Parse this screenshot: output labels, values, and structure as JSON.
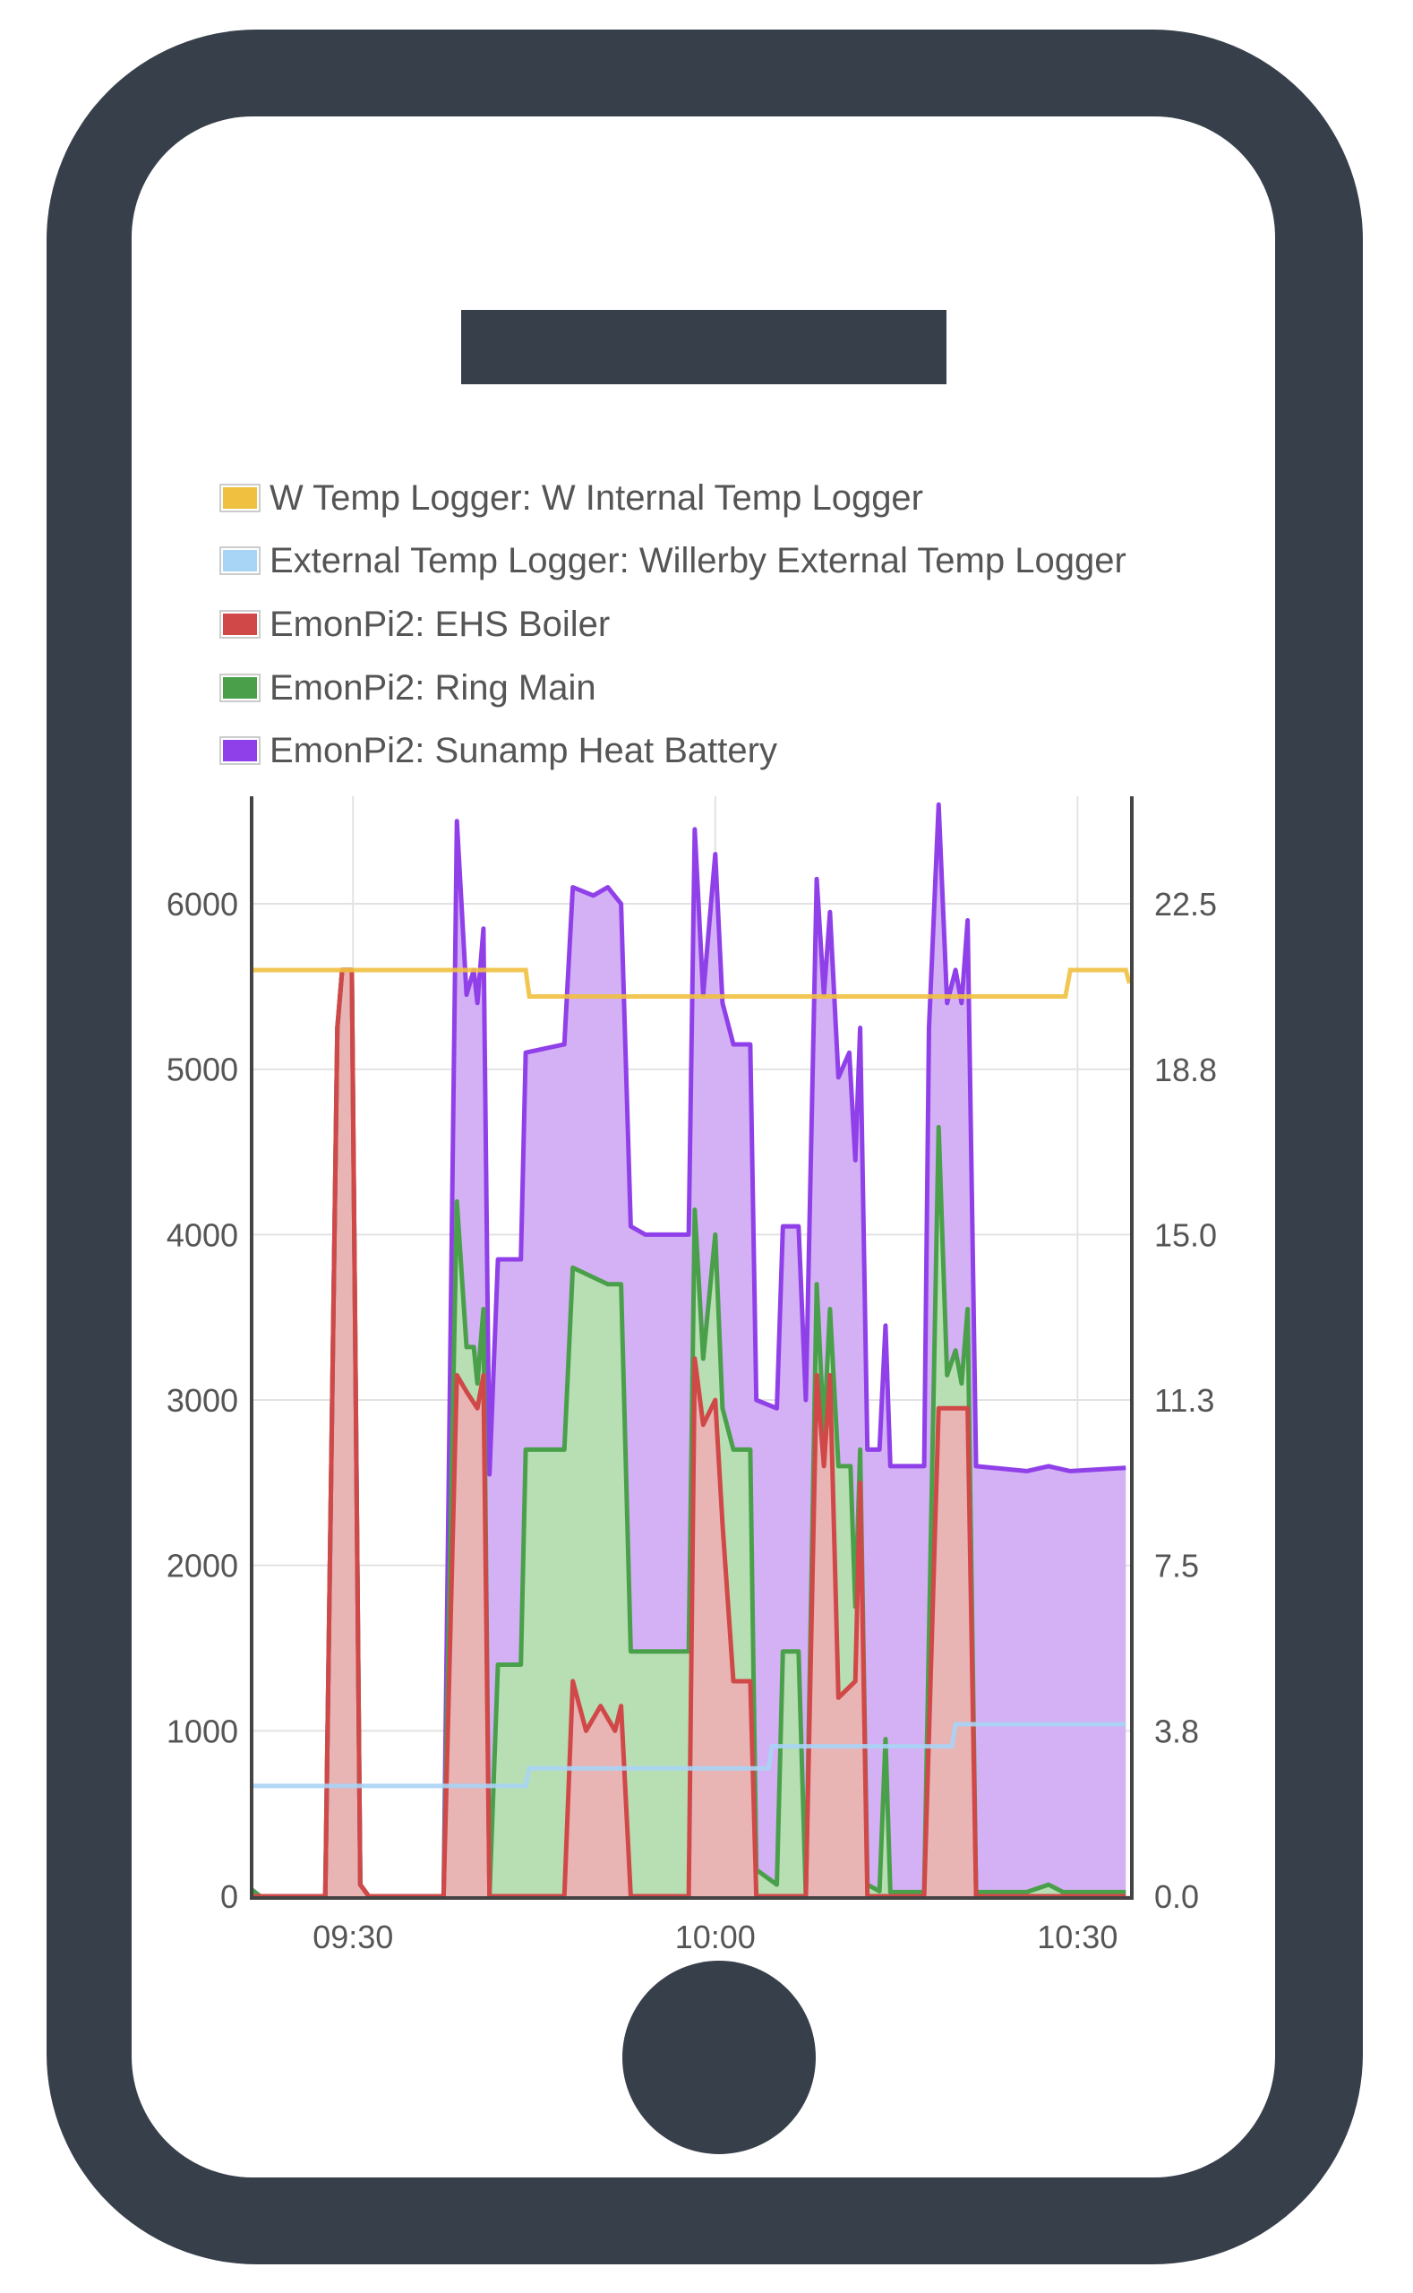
{
  "chart_data": {
    "type": "area",
    "stacked": true,
    "note_values": "power series given as stacked top values (W)",
    "x_unit": "minutes after 09:00",
    "xlim": [
      21.6,
      94.5
    ],
    "x_ticks": [
      {
        "value": 30,
        "label": "09:30"
      },
      {
        "value": 60,
        "label": "10:00"
      },
      {
        "value": 90,
        "label": "10:30"
      }
    ],
    "y_left": {
      "lim": [
        0,
        6650
      ],
      "ticks": [
        0,
        1000,
        2000,
        3000,
        4000,
        5000,
        6000
      ],
      "labels": [
        "0",
        "1000",
        "2000",
        "3000",
        "4000",
        "5000",
        "6000"
      ]
    },
    "y_right": {
      "lim": [
        0,
        24.94
      ],
      "ticks": [
        0,
        3.75,
        7.5,
        11.25,
        15,
        18.75,
        22.5
      ],
      "labels": [
        "0.0",
        "3.8",
        "7.5",
        "11.3",
        "15.0",
        "18.8",
        "22.5"
      ]
    },
    "grid": true,
    "legend_position": "top",
    "series": [
      {
        "name": "W Temp Logger: W Internal Temp Logger",
        "color": "#f0c040",
        "axis": "right",
        "kind": "line",
        "points": [
          [
            21.6,
            21.0
          ],
          [
            44.3,
            21.0
          ],
          [
            44.6,
            20.4
          ],
          [
            89.0,
            20.4
          ],
          [
            89.4,
            21.0
          ],
          [
            94.0,
            21.0
          ],
          [
            94.3,
            20.7
          ]
        ]
      },
      {
        "name": "External Temp Logger: Willerby External Temp Logger",
        "color": "#a8d4f5",
        "axis": "right",
        "kind": "line",
        "points": [
          [
            21.6,
            2.5
          ],
          [
            44.3,
            2.5
          ],
          [
            44.6,
            2.9
          ],
          [
            64.4,
            2.9
          ],
          [
            64.7,
            3.4
          ],
          [
            79.6,
            3.4
          ],
          [
            79.9,
            3.9
          ],
          [
            94.0,
            3.9
          ]
        ]
      },
      {
        "name": "EmonPi2: EHS Boiler",
        "color": "#d04848",
        "fill": "#e8b4b4",
        "axis": "left",
        "kind": "area",
        "points": [
          [
            21.6,
            0
          ],
          [
            27.7,
            0
          ],
          [
            28.7,
            5250
          ],
          [
            29.1,
            5600
          ],
          [
            29.9,
            5600
          ],
          [
            30.6,
            70
          ],
          [
            31.3,
            0
          ],
          [
            37.5,
            0
          ],
          [
            38.6,
            3150
          ],
          [
            39.4,
            3050
          ],
          [
            40.3,
            2950
          ],
          [
            40.8,
            3150
          ],
          [
            41.3,
            0
          ],
          [
            47.5,
            0
          ],
          [
            48.2,
            1300
          ],
          [
            49.3,
            1000
          ],
          [
            50.5,
            1150
          ],
          [
            51.7,
            1000
          ],
          [
            52.2,
            1150
          ],
          [
            53.0,
            0
          ],
          [
            57.8,
            0
          ],
          [
            58.3,
            3250
          ],
          [
            59.0,
            2850
          ],
          [
            60.0,
            3000
          ],
          [
            60.6,
            2250
          ],
          [
            61.5,
            1300
          ],
          [
            62.9,
            1300
          ],
          [
            63.4,
            0
          ],
          [
            67.5,
            0
          ],
          [
            68.4,
            3150
          ],
          [
            69.0,
            2600
          ],
          [
            69.5,
            3150
          ],
          [
            70.2,
            1200
          ],
          [
            71.6,
            1300
          ],
          [
            72.0,
            2500
          ],
          [
            72.6,
            0
          ],
          [
            77.3,
            0
          ],
          [
            78.5,
            2950
          ],
          [
            80.9,
            2950
          ],
          [
            81.6,
            0
          ],
          [
            94.0,
            0
          ]
        ]
      },
      {
        "name": "EmonPi2: Ring Main",
        "color": "#4aa04a",
        "fill": "#b8deb4",
        "axis": "left",
        "kind": "area",
        "points": [
          [
            21.6,
            40
          ],
          [
            22.3,
            0
          ],
          [
            27.7,
            0
          ],
          [
            28.7,
            5250
          ],
          [
            29.1,
            5600
          ],
          [
            29.9,
            5600
          ],
          [
            30.6,
            70
          ],
          [
            31.3,
            0
          ],
          [
            37.5,
            0
          ],
          [
            38.6,
            4200
          ],
          [
            39.4,
            3320
          ],
          [
            40.0,
            3320
          ],
          [
            40.3,
            3100
          ],
          [
            40.8,
            3550
          ],
          [
            41.3,
            0
          ],
          [
            42.0,
            1400
          ],
          [
            43.9,
            1400
          ],
          [
            44.3,
            2700
          ],
          [
            47.5,
            2700
          ],
          [
            48.2,
            3800
          ],
          [
            51.1,
            3700
          ],
          [
            52.2,
            3700
          ],
          [
            53.0,
            1480
          ],
          [
            57.8,
            1480
          ],
          [
            58.3,
            4150
          ],
          [
            59.0,
            3250
          ],
          [
            60.0,
            4000
          ],
          [
            60.6,
            2950
          ],
          [
            61.5,
            2700
          ],
          [
            62.9,
            2700
          ],
          [
            63.4,
            160
          ],
          [
            65.1,
            70
          ],
          [
            65.6,
            1480
          ],
          [
            66.9,
            1480
          ],
          [
            67.5,
            0
          ],
          [
            68.4,
            3700
          ],
          [
            69.0,
            2800
          ],
          [
            69.5,
            3550
          ],
          [
            70.2,
            2600
          ],
          [
            71.2,
            2600
          ],
          [
            71.6,
            1750
          ],
          [
            72.0,
            2700
          ],
          [
            72.6,
            70
          ],
          [
            73.6,
            30
          ],
          [
            74.1,
            950
          ],
          [
            74.5,
            25
          ],
          [
            77.3,
            25
          ],
          [
            78.5,
            4650
          ],
          [
            79.2,
            3150
          ],
          [
            79.9,
            3300
          ],
          [
            80.4,
            3100
          ],
          [
            80.9,
            3550
          ],
          [
            81.6,
            25
          ],
          [
            85.8,
            25
          ],
          [
            87.6,
            70
          ],
          [
            88.8,
            25
          ],
          [
            94.0,
            25
          ]
        ]
      },
      {
        "name": "EmonPi2: Sunamp Heat Battery",
        "color": "#9040e8",
        "fill": "#d4b0f4",
        "axis": "left",
        "kind": "area",
        "points": [
          [
            21.6,
            40
          ],
          [
            22.3,
            0
          ],
          [
            27.7,
            0
          ],
          [
            28.7,
            5250
          ],
          [
            29.1,
            5600
          ],
          [
            29.9,
            5600
          ],
          [
            30.6,
            70
          ],
          [
            31.3,
            0
          ],
          [
            37.5,
            0
          ],
          [
            38.6,
            6500
          ],
          [
            39.4,
            5450
          ],
          [
            40.0,
            5600
          ],
          [
            40.3,
            5400
          ],
          [
            40.8,
            5850
          ],
          [
            41.3,
            2550
          ],
          [
            42.0,
            3850
          ],
          [
            43.9,
            3850
          ],
          [
            44.3,
            5100
          ],
          [
            47.5,
            5150
          ],
          [
            48.2,
            6100
          ],
          [
            49.9,
            6050
          ],
          [
            51.1,
            6100
          ],
          [
            52.2,
            6000
          ],
          [
            53.0,
            4050
          ],
          [
            54.2,
            4000
          ],
          [
            57.8,
            4000
          ],
          [
            58.3,
            6450
          ],
          [
            59.0,
            5450
          ],
          [
            60.0,
            6300
          ],
          [
            60.6,
            5400
          ],
          [
            61.5,
            5150
          ],
          [
            62.9,
            5150
          ],
          [
            63.4,
            3000
          ],
          [
            65.1,
            2950
          ],
          [
            65.6,
            4050
          ],
          [
            66.9,
            4050
          ],
          [
            67.5,
            3000
          ],
          [
            68.4,
            6150
          ],
          [
            69.0,
            5450
          ],
          [
            69.5,
            5950
          ],
          [
            70.2,
            4950
          ],
          [
            71.1,
            5100
          ],
          [
            71.6,
            4450
          ],
          [
            72.0,
            5250
          ],
          [
            72.6,
            2700
          ],
          [
            73.6,
            2700
          ],
          [
            74.1,
            3450
          ],
          [
            74.5,
            2600
          ],
          [
            77.3,
            2600
          ],
          [
            77.7,
            5250
          ],
          [
            78.5,
            6600
          ],
          [
            79.2,
            5400
          ],
          [
            79.9,
            5600
          ],
          [
            80.4,
            5400
          ],
          [
            80.9,
            5900
          ],
          [
            81.6,
            2600
          ],
          [
            85.8,
            2570
          ],
          [
            87.6,
            2600
          ],
          [
            89.4,
            2570
          ],
          [
            94.0,
            2590
          ]
        ]
      }
    ]
  },
  "legend": [
    {
      "label": "W Temp Logger: W Internal Temp Logger",
      "color": "#f0c040"
    },
    {
      "label": "External Temp Logger: Willerby External Temp Logger",
      "color": "#a8d4f5"
    },
    {
      "label": "EmonPi2: EHS Boiler",
      "color": "#d04848"
    },
    {
      "label": "EmonPi2: Ring Main",
      "color": "#4aa04a"
    },
    {
      "label": "EmonPi2: Sunamp Heat Battery",
      "color": "#9040e8"
    }
  ]
}
